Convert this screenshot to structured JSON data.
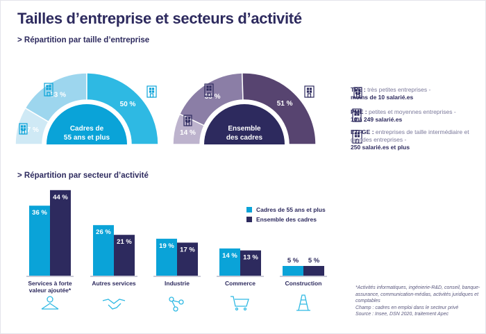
{
  "title": "Tailles d’entreprise et secteurs d’activité",
  "section_size": "> Répartition par taille d’entreprise",
  "section_sector": "> Répartition par secteur d’activité",
  "size_legend": [
    {
      "abbr": "TPE :",
      "desc": "très petites entreprises -",
      "range": "moins de 10 salarié.es",
      "icon": "small-building-icon"
    },
    {
      "abbr": "PME :",
      "desc": "petites et moyennes entreprises -",
      "range": "10 à 249 salarié.es",
      "icon": "medium-building-icon"
    },
    {
      "abbr": "ETI-GE :",
      "desc": "entreprises de taille intermédiaire et grandes entreprises -",
      "range": "250 salarié.es et plus",
      "icon": "large-building-icon"
    }
  ],
  "footnote": [
    "*Activités informatiques, ingénierie-R&D, conseil, banque-assurance, communication-médias, activités juridiques et comptables",
    "Champ : cadres en emploi dans le secteur privé",
    "Source : Insee, DSN 2020, traitement Apec"
  ],
  "chart_data": [
    {
      "type": "pie",
      "variant": "half-donut",
      "center_label": "Cadres de 55 ans et plus",
      "categories": [
        "TPE",
        "PME",
        "ETI-GE"
      ],
      "values": [
        17,
        33,
        50
      ],
      "labels": [
        "17 %",
        "33 %",
        "50 %"
      ],
      "colors": [
        "#cfe9f5",
        "#9dd6ee",
        "#2eb9e3"
      ],
      "center_color": "#0aa3d8"
    },
    {
      "type": "pie",
      "variant": "half-donut",
      "center_label": "Ensemble des cadres",
      "categories": [
        "TPE",
        "PME",
        "ETI-GE"
      ],
      "values": [
        14,
        35,
        51
      ],
      "labels": [
        "14 %",
        "35 %",
        "51 %"
      ],
      "colors": [
        "#bdb3cd",
        "#8b7ea6",
        "#574470"
      ],
      "center_color": "#2d2a5e"
    },
    {
      "type": "bar",
      "categories": [
        "Services à forte valeur ajoutée*",
        "Autres services",
        "Industrie",
        "Commerce",
        "Construction"
      ],
      "category_icons": [
        "people-network-icon",
        "handshake-icon",
        "molecule-icon",
        "shopping-cart-icon",
        "traffic-cone-icon"
      ],
      "series": [
        {
          "name": "Cadres de 55 ans et plus",
          "values": [
            36,
            26,
            19,
            14,
            5
          ],
          "color": "#0aa3d8"
        },
        {
          "name": "Ensemble des cadres",
          "values": [
            44,
            21,
            17,
            13,
            5
          ],
          "color": "#2d2a5e"
        }
      ],
      "value_suffix": " %",
      "legend": "right"
    }
  ]
}
